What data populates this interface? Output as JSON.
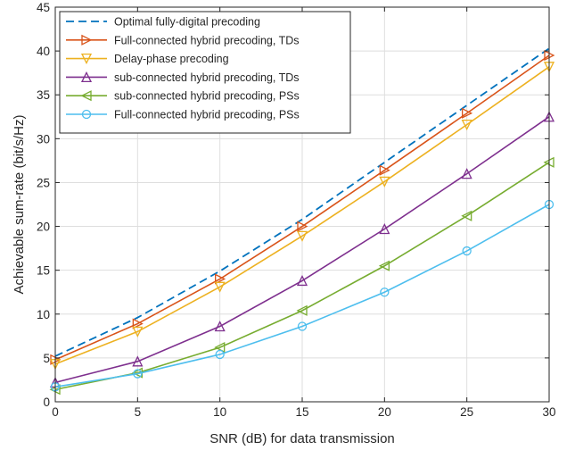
{
  "chart_data": {
    "type": "line",
    "title": "",
    "xlabel": "SNR (dB) for data transmission",
    "ylabel": "Achievable sum-rate (bit/s/Hz)",
    "xlim": [
      0,
      30
    ],
    "ylim": [
      0,
      45
    ],
    "xticks": [
      0,
      5,
      10,
      15,
      20,
      25,
      30
    ],
    "yticks": [
      0,
      5,
      10,
      15,
      20,
      25,
      30,
      35,
      40,
      45
    ],
    "grid": true,
    "legend_position": "top-left",
    "x": [
      0,
      5,
      10,
      15,
      20,
      25,
      30
    ],
    "series": [
      {
        "name": "Optimal fully-digital precoding",
        "values": [
          5.2,
          9.6,
          14.9,
          20.8,
          27.3,
          33.8,
          40.3
        ],
        "color": "#0072BD",
        "style": "dashed",
        "marker": "none"
      },
      {
        "name": "Full-connected hybrid precoding, TDs",
        "values": [
          4.8,
          8.9,
          14.0,
          20.0,
          26.4,
          32.9,
          39.5
        ],
        "color": "#D95319",
        "style": "solid",
        "marker": "triangle-right"
      },
      {
        "name": "Delay-phase precoding",
        "values": [
          4.3,
          8.0,
          13.1,
          18.9,
          25.1,
          31.6,
          38.2
        ],
        "color": "#EDB120",
        "style": "solid",
        "marker": "triangle-down"
      },
      {
        "name": "sub-connected hybrid precoding, TDs",
        "values": [
          2.2,
          4.6,
          8.6,
          13.8,
          19.7,
          26.0,
          32.5
        ],
        "color": "#7E2F8E",
        "style": "solid",
        "marker": "triangle-up"
      },
      {
        "name": "sub-connected hybrid precoding, PSs",
        "values": [
          1.4,
          3.3,
          6.2,
          10.4,
          15.5,
          21.2,
          27.3
        ],
        "color": "#77AC30",
        "style": "solid",
        "marker": "triangle-left"
      },
      {
        "name": "Full-connected hybrid precoding, PSs",
        "values": [
          1.7,
          3.2,
          5.4,
          8.6,
          12.5,
          17.2,
          22.5
        ],
        "color": "#4DBEEE",
        "style": "solid",
        "marker": "circle"
      }
    ]
  }
}
